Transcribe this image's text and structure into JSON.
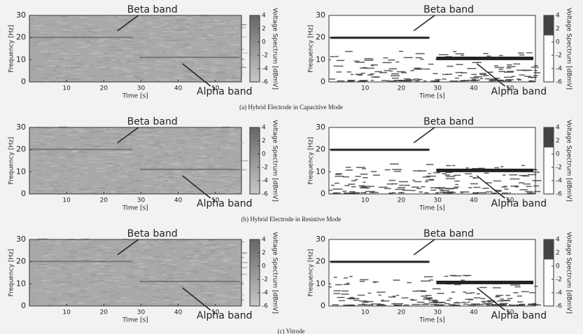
{
  "captions": [
    "(a) Hybrid Electrode in Capacitive Mode",
    "(b) Hybrid Electrode in Resistive Mode",
    "(c) Vitrode"
  ],
  "chart_data": [
    {
      "type": "spectrogram",
      "xlabel": "Time [s]",
      "ylabel": "Frequency [Hz]",
      "xlim": [
        0,
        57
      ],
      "xticks": [
        10,
        20,
        30,
        40,
        50
      ],
      "ylim": [
        0,
        30
      ],
      "yticks": [
        0,
        10,
        20,
        30
      ],
      "colorbar_label": "Voltage Spectrum [dBmV]",
      "clim": [
        -6,
        4
      ],
      "cticks": [
        -6,
        -4,
        -2,
        0,
        2,
        4
      ],
      "background": "#a9a9a9",
      "annotations": [
        "Beta band",
        "Alpha band"
      ]
    },
    {
      "type": "spectrogram",
      "xlabel": "Time [s]",
      "ylabel": "Frequency [Hz]",
      "xlim": [
        0,
        57
      ],
      "xticks": [
        10,
        20,
        30,
        40,
        50
      ],
      "ylim": [
        0,
        30
      ],
      "yticks": [
        0,
        10,
        20,
        30
      ],
      "colorbar_label": "Voltage Spectrum [dBmV]",
      "clim": [
        -6,
        4
      ],
      "cticks": [
        -6,
        -4,
        -2,
        0,
        2,
        4
      ],
      "background": "#ffffff",
      "annotations": [
        "Beta band",
        "Alpha band"
      ]
    },
    {
      "type": "spectrogram",
      "xlabel": "Time [s]",
      "ylabel": "Frequency [Hz]",
      "xlim": [
        0,
        57
      ],
      "xticks": [
        10,
        20,
        30,
        40,
        50
      ],
      "ylim": [
        0,
        30
      ],
      "yticks": [
        0,
        10,
        20,
        30
      ],
      "colorbar_label": "Voltage Spectrum [dBmV]",
      "clim": [
        -6,
        4
      ],
      "cticks": [
        -6,
        -4,
        -2,
        0,
        2,
        4
      ],
      "background": "#a9a9a9",
      "annotations": [
        "Beta band",
        "Alpha band"
      ]
    },
    {
      "type": "spectrogram",
      "xlabel": "Time [s]",
      "ylabel": "Frequency [Hz]",
      "xlim": [
        0,
        57
      ],
      "xticks": [
        10,
        20,
        30,
        40,
        50
      ],
      "ylim": [
        0,
        30
      ],
      "yticks": [
        0,
        10,
        20,
        30
      ],
      "colorbar_label": "Voltage Spectrum [dBmV]",
      "clim": [
        -6,
        4
      ],
      "cticks": [
        -6,
        -4,
        -2,
        0,
        2,
        4
      ],
      "background": "#ffffff",
      "annotations": [
        "Beta band",
        "Alpha band"
      ]
    },
    {
      "type": "spectrogram",
      "xlabel": "Time [s]",
      "ylabel": "Frequency [Hz]",
      "xlim": [
        0,
        57
      ],
      "xticks": [
        10,
        20,
        30,
        40,
        50
      ],
      "ylim": [
        0,
        30
      ],
      "yticks": [
        0,
        10,
        20,
        30
      ],
      "colorbar_label": "Voltage Spectrum [dBmV]",
      "clim": [
        -6,
        4
      ],
      "cticks": [
        -6,
        -4,
        -2,
        0,
        2,
        4
      ],
      "background": "#a9a9a9",
      "annotations": [
        "Beta band",
        "Alpha band"
      ]
    },
    {
      "type": "spectrogram",
      "xlabel": "Time [s]",
      "ylabel": "Frequency [Hz]",
      "xlim": [
        0,
        57
      ],
      "xticks": [
        10,
        20,
        30,
        40,
        50
      ],
      "ylim": [
        0,
        30
      ],
      "yticks": [
        0,
        10,
        20,
        30
      ],
      "colorbar_label": "Voltage Spectrum [dBmV]",
      "clim": [
        -6,
        4
      ],
      "cticks": [
        -6,
        -4,
        -2,
        0,
        2,
        4
      ],
      "background": "#ffffff",
      "annotations": [
        "Beta band",
        "Alpha band"
      ]
    }
  ]
}
